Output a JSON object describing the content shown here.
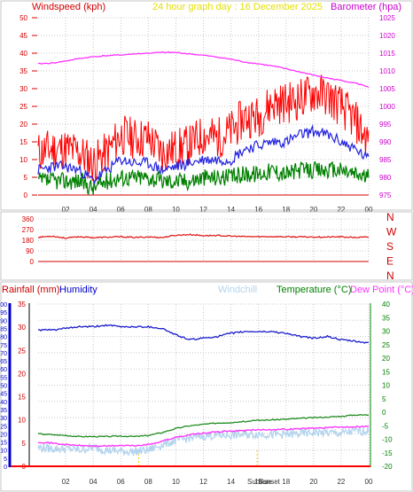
{
  "header": {
    "title": "24 hour graph day : 16 December 2025",
    "left_label": "Windspeed (kph)",
    "right_label": "Barometer (hpa)"
  },
  "colors": {
    "panel_bg": "#ffffff",
    "border": "#c6c6c6",
    "grid": "#c8c8c8",
    "axis_red": "#d10000",
    "axis_magenta": "#cc00cc",
    "title_yellow": "#e6e000",
    "gust": "#ff0000",
    "wind_avg": "#2323e0",
    "wind_low": "#008000",
    "barometer": "#ff33ff",
    "direction": "#e02020",
    "humidity": "#1a1acc",
    "windchill": "#b3d4ee",
    "temperature": "#1e8c1e",
    "dewpoint": "#ff33ff",
    "rain": "#ff0000",
    "humidity_axis": "#0000cc",
    "rain_axis": "#cc0000",
    "temp_axis": "#008000",
    "sun_marker": "#f0d000"
  },
  "x_ticks": [
    "02",
    "04",
    "06",
    "08",
    "10",
    "12",
    "14",
    "16",
    "18",
    "20",
    "22",
    "00"
  ],
  "chart_data": [
    {
      "type": "line",
      "title": "24 hour graph day : 16 December 2025",
      "x_unit": "hour",
      "xlim": [
        0,
        24
      ],
      "y_left": {
        "label": "Windspeed (kph)",
        "ticks": [
          "0",
          "5",
          "10",
          "15",
          "20",
          "25",
          "30",
          "35",
          "40",
          "45",
          "50"
        ],
        "ylim": [
          0,
          50
        ]
      },
      "y_right": {
        "label": "Barometer (hpa)",
        "ticks": [
          "975",
          "980",
          "985",
          "990",
          "995",
          "1000",
          "1005",
          "1010",
          "1015",
          "1020",
          "1025"
        ],
        "ylim": [
          975,
          1025
        ]
      },
      "grid": true,
      "series": [
        {
          "name": "gust",
          "axis": "left",
          "x": [
            0,
            1,
            2,
            3,
            4,
            5,
            6,
            7,
            8,
            9,
            10,
            11,
            12,
            13,
            14,
            15,
            16,
            17,
            18,
            19,
            20,
            21,
            22,
            23,
            24
          ],
          "values": [
            12,
            13,
            13,
            12,
            9,
            12,
            17,
            16,
            16,
            12,
            13,
            14,
            17,
            16,
            18,
            22,
            22,
            26,
            26,
            27,
            29,
            28,
            25,
            21,
            15
          ]
        },
        {
          "name": "average",
          "axis": "left",
          "x": [
            0,
            1,
            2,
            3,
            4,
            5,
            6,
            7,
            8,
            9,
            10,
            11,
            12,
            13,
            14,
            15,
            16,
            17,
            18,
            19,
            20,
            21,
            22,
            23,
            24
          ],
          "values": [
            7,
            8,
            8,
            7,
            4,
            7,
            10,
            9,
            9,
            7,
            8,
            9,
            10,
            10,
            10,
            13,
            14,
            15,
            15,
            17,
            18,
            17,
            15,
            13,
            10
          ]
        },
        {
          "name": "lull",
          "axis": "left",
          "x": [
            0,
            1,
            2,
            3,
            4,
            5,
            6,
            7,
            8,
            9,
            10,
            11,
            12,
            13,
            14,
            15,
            16,
            17,
            18,
            19,
            20,
            21,
            22,
            23,
            24
          ],
          "values": [
            4,
            4,
            4,
            4,
            2,
            4,
            5,
            5,
            5,
            4,
            4,
            4,
            5,
            5,
            5,
            6,
            6,
            7,
            6,
            7,
            7,
            7,
            7,
            6,
            5
          ]
        },
        {
          "name": "barometer",
          "axis": "right",
          "x": [
            0,
            1,
            2,
            3,
            4,
            5,
            6,
            7,
            8,
            9,
            10,
            11,
            12,
            13,
            14,
            15,
            16,
            17,
            18,
            19,
            20,
            21,
            22,
            23,
            24
          ],
          "values": [
            1012.0,
            1012.2,
            1012.8,
            1013.5,
            1014.0,
            1014.3,
            1014.5,
            1014.8,
            1015.0,
            1015.2,
            1015.2,
            1014.8,
            1014.4,
            1013.9,
            1013.3,
            1012.5,
            1012.0,
            1011.4,
            1010.6,
            1009.7,
            1008.8,
            1008.0,
            1007.3,
            1006.6,
            1005.5
          ]
        }
      ]
    },
    {
      "type": "line",
      "x_unit": "hour",
      "xlim": [
        0,
        24
      ],
      "y_left": {
        "ticks": [
          "360",
          "270",
          "180",
          "90",
          "0"
        ],
        "ylim": [
          0,
          360
        ]
      },
      "y_right": {
        "ticks": [
          "N",
          "W",
          "S",
          "E",
          "N"
        ]
      },
      "grid": true,
      "series": [
        {
          "name": "direction",
          "x": [
            0,
            1,
            2,
            3,
            4,
            5,
            6,
            7,
            8,
            9,
            10,
            11,
            12,
            13,
            14,
            15,
            16,
            17,
            18,
            19,
            20,
            21,
            22,
            23,
            24
          ],
          "values": [
            205,
            215,
            198,
            210,
            202,
            205,
            210,
            203,
            208,
            203,
            222,
            228,
            219,
            220,
            214,
            211,
            210,
            211,
            209,
            208,
            208,
            207,
            209,
            203,
            206
          ]
        }
      ]
    },
    {
      "type": "line",
      "x_unit": "hour",
      "xlim": [
        0,
        24
      ],
      "labels": [
        "Rainfall (mm)",
        "Humidity",
        "Windchill",
        "Temperature (°C)",
        "Dew Point (°C)"
      ],
      "y_rain": {
        "label": "Rainfall (mm)",
        "ticks": [
          "0",
          "5",
          "10",
          "15",
          "20",
          "25",
          "30",
          "35",
          "40",
          "45",
          "50",
          "55",
          "60",
          "65",
          "70",
          "75",
          "80",
          "85",
          "90",
          "95",
          "100"
        ],
        "ylim": [
          0,
          100
        ]
      },
      "y_humidity": {
        "label": "Humidity",
        "ticks": [
          "0",
          "5",
          "10",
          "15",
          "20",
          "25",
          "30",
          "35"
        ],
        "ylim": [
          0,
          35
        ]
      },
      "y_temperature": {
        "label": "Temperature (°C)",
        "ticks": [
          "-20",
          "-15",
          "-10",
          "-5",
          "0",
          "5",
          "10",
          "15",
          "20",
          "25",
          "30",
          "35",
          "40"
        ],
        "ylim": [
          -20,
          40
        ]
      },
      "x_annotations": [
        "Sunrise",
        "Sunset"
      ],
      "sun_events_hour": [
        7.3,
        15.9
      ],
      "grid": true,
      "series": [
        {
          "name": "Humidity",
          "axis": "humidity",
          "x": [
            0,
            1,
            2,
            3,
            4,
            5,
            6,
            7,
            8,
            9,
            10,
            11,
            12,
            13,
            14,
            15,
            16,
            17,
            18,
            19,
            20,
            21,
            22,
            23,
            24
          ],
          "values": [
            84,
            84,
            85,
            86,
            86,
            87,
            86,
            86,
            86,
            85,
            81,
            78,
            79,
            80,
            82,
            83,
            83,
            83,
            82,
            80,
            79,
            80,
            78,
            77,
            76
          ]
        },
        {
          "name": "Temperature",
          "axis": "temperature",
          "x": [
            0,
            1,
            2,
            3,
            4,
            5,
            6,
            7,
            8,
            9,
            10,
            11,
            12,
            13,
            14,
            15,
            16,
            17,
            18,
            19,
            20,
            21,
            22,
            23,
            24
          ],
          "values": [
            -8,
            -8.3,
            -8.6,
            -9,
            -9,
            -9,
            -8.8,
            -9,
            -8.6,
            -7.5,
            -6,
            -5,
            -4.5,
            -4,
            -3.8,
            -3.4,
            -3,
            -2.8,
            -2.6,
            -2.3,
            -2,
            -1.8,
            -1.5,
            -1,
            -1
          ]
        },
        {
          "name": "Dew Point",
          "axis": "temperature",
          "x": [
            0,
            1,
            2,
            3,
            4,
            5,
            6,
            7,
            8,
            9,
            10,
            11,
            12,
            13,
            14,
            15,
            16,
            17,
            18,
            19,
            20,
            21,
            22,
            23,
            24
          ],
          "values": [
            -11,
            -11.4,
            -12,
            -12.3,
            -12.5,
            -12.5,
            -12.3,
            -12.4,
            -12,
            -10.7,
            -9.3,
            -8.3,
            -7.8,
            -7.3,
            -7,
            -6.8,
            -6.5,
            -6.4,
            -6.3,
            -6.1,
            -5.9,
            -5.7,
            -5.5,
            -5.3,
            -5.2
          ]
        },
        {
          "name": "Windchill",
          "axis": "temperature",
          "x": [
            0,
            1,
            2,
            3,
            4,
            5,
            6,
            7,
            8,
            9,
            10,
            11,
            12,
            13,
            14,
            15,
            16,
            17,
            18,
            19,
            20,
            21,
            22,
            23,
            24
          ],
          "values": [
            -13,
            -13.5,
            -13.5,
            -14,
            -13,
            -14,
            -14.5,
            -14.5,
            -14,
            -12,
            -10.5,
            -9.5,
            -8.8,
            -8.5,
            -8.5,
            -8.3,
            -8,
            -8.3,
            -8.2,
            -8,
            -7.5,
            -7.6,
            -7.8,
            -7,
            -7
          ]
        },
        {
          "name": "Rainfall",
          "axis": "rain",
          "x": [
            0,
            24
          ],
          "values": [
            0,
            0
          ]
        }
      ]
    }
  ]
}
